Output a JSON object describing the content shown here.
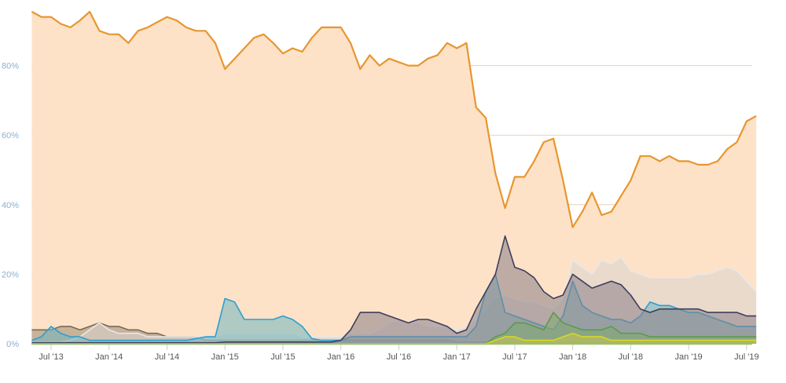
{
  "chart_data": {
    "type": "area",
    "title": "",
    "xlabel": "",
    "ylabel": "",
    "ylim": [
      0,
      100
    ],
    "grid": true,
    "y_ticks": [
      "0%",
      "20%",
      "40%",
      "60%",
      "80%"
    ],
    "y_tick_values": [
      0,
      20,
      40,
      60,
      80
    ],
    "x_ticks": [
      "Jul '13",
      "Jan '14",
      "Jul '14",
      "Jan '15",
      "Jul '15",
      "Jan '16",
      "Jul '16",
      "Jan '17",
      "Jul '17",
      "Jan '18",
      "Jul '18",
      "Jan '19",
      "Jul '19"
    ],
    "x_tick_dates": [
      "2013-07",
      "2014-01",
      "2014-07",
      "2015-01",
      "2015-07",
      "2016-01",
      "2016-07",
      "2017-01",
      "2017-07",
      "2018-01",
      "2018-07",
      "2019-01",
      "2019-07"
    ],
    "x": [
      "2013-05",
      "2013-06",
      "2013-07",
      "2013-08",
      "2013-09",
      "2013-10",
      "2013-11",
      "2013-12",
      "2014-01",
      "2014-02",
      "2014-03",
      "2014-04",
      "2014-05",
      "2014-06",
      "2014-07",
      "2014-08",
      "2014-09",
      "2014-10",
      "2014-11",
      "2014-12",
      "2015-01",
      "2015-02",
      "2015-03",
      "2015-04",
      "2015-05",
      "2015-06",
      "2015-07",
      "2015-08",
      "2015-09",
      "2015-10",
      "2015-11",
      "2015-12",
      "2016-01",
      "2016-02",
      "2016-03",
      "2016-04",
      "2016-05",
      "2016-06",
      "2016-07",
      "2016-08",
      "2016-09",
      "2016-10",
      "2016-11",
      "2016-12",
      "2017-01",
      "2017-02",
      "2017-03",
      "2017-04",
      "2017-05",
      "2017-06",
      "2017-07",
      "2017-08",
      "2017-09",
      "2017-10",
      "2017-11",
      "2017-12",
      "2018-01",
      "2018-02",
      "2018-03",
      "2018-04",
      "2018-05",
      "2018-06",
      "2018-07",
      "2018-08",
      "2018-09",
      "2018-10",
      "2018-11",
      "2018-12",
      "2019-01",
      "2019-02",
      "2019-03",
      "2019-04",
      "2019-05",
      "2019-06",
      "2019-07",
      "2019-08"
    ],
    "series": [
      {
        "color": "#e8962e",
        "fill": "#fde2c8",
        "values": [
          95.5,
          94,
          94,
          92,
          91,
          93,
          95.5,
          90,
          89,
          89,
          86.5,
          90,
          91,
          92.5,
          94,
          93,
          91,
          90,
          90,
          86.5,
          79,
          82,
          85,
          88,
          89,
          86.5,
          83.5,
          85,
          84,
          88,
          91,
          91,
          91,
          86.5,
          79,
          83,
          80,
          82,
          81,
          80,
          80,
          82,
          83,
          86.5,
          85,
          86.5,
          68,
          65,
          49,
          39,
          48,
          48,
          52.5,
          58,
          59,
          47,
          33.5,
          38,
          43.5,
          37,
          38,
          42.5,
          47,
          54,
          54,
          52.5,
          54,
          52.5,
          52.5,
          51.5,
          51.5,
          52.5,
          56,
          58,
          64,
          65.5
        ]
      },
      {
        "color": "#7a6a55",
        "fill": "#9a8a75",
        "values": [
          4,
          4,
          4,
          5,
          5,
          4,
          5,
          6,
          5,
          5,
          4,
          4,
          3,
          3,
          2,
          2,
          2,
          2,
          1,
          1,
          1,
          1,
          1,
          1,
          1,
          1,
          1,
          1,
          1,
          1,
          1,
          1,
          1,
          1,
          1,
          1,
          1,
          1,
          1,
          1,
          1,
          1,
          1,
          1,
          0.5,
          0.5,
          0.5,
          0.5,
          0.5,
          0.5,
          0.5,
          0.5,
          0.5,
          0.5,
          0.5,
          0.5,
          0.5,
          0.5,
          0.5,
          0.5,
          0.5,
          0.5,
          0.5,
          0.5,
          0.5,
          0.5,
          0.5,
          0.5,
          0.5,
          0.5,
          0.5,
          0.5,
          0.5,
          0.5,
          0.5,
          0.5
        ]
      },
      {
        "color": "#e8e8e8",
        "fill": "#d8d4d0",
        "values": [
          0.5,
          0.5,
          0.5,
          0.5,
          1,
          2,
          4,
          6,
          4,
          3,
          3,
          3,
          2,
          2,
          2,
          2,
          2,
          2,
          2,
          2,
          3,
          3,
          3,
          3,
          3,
          3,
          3,
          3,
          2,
          2,
          2,
          2,
          2,
          3,
          3,
          3,
          4,
          6,
          7,
          6,
          6,
          5,
          5,
          5,
          4,
          5,
          7,
          10,
          13,
          14,
          13,
          12,
          12,
          11,
          10,
          13,
          24,
          22,
          20,
          24,
          23,
          25,
          21,
          20,
          19,
          19,
          19,
          19,
          19,
          20,
          20,
          21,
          22,
          21,
          18,
          15
        ]
      },
      {
        "color": "#2b9fd0",
        "fill": "#6fb5c0",
        "values": [
          1,
          2,
          5,
          3,
          2,
          2,
          1,
          1,
          1,
          1,
          1,
          1,
          1,
          1,
          1,
          1,
          1,
          1.5,
          2,
          2,
          13,
          12,
          7,
          7,
          7,
          7,
          8,
          7,
          5,
          1.5,
          1,
          1,
          1,
          2,
          2,
          2,
          2,
          2,
          2,
          2,
          2,
          2,
          2,
          2,
          2,
          2,
          5,
          15,
          20,
          9,
          8,
          7,
          6,
          5,
          4,
          8,
          18,
          11,
          9,
          8,
          7,
          7,
          6,
          8,
          12,
          11,
          11,
          10,
          9,
          9,
          8,
          7,
          6,
          5,
          5,
          5
        ]
      },
      {
        "color": "#3e3d5c",
        "fill": "#8a7f86",
        "values": [
          0.3,
          0.3,
          0.3,
          0.3,
          0.3,
          0.3,
          0.3,
          0.3,
          0.3,
          0.3,
          0.3,
          0.3,
          0.3,
          0.3,
          0.3,
          0.3,
          0.3,
          0.3,
          0.3,
          0.3,
          0.5,
          0.5,
          0.5,
          0.5,
          0.5,
          0.5,
          0.5,
          0.5,
          0.5,
          0.5,
          0.5,
          0.5,
          1,
          4,
          9,
          9,
          9,
          8,
          7,
          6,
          7,
          7,
          6,
          5,
          3,
          4,
          10,
          15,
          20,
          31,
          22,
          21,
          19,
          15,
          13,
          14,
          20,
          18,
          16,
          17,
          18,
          17,
          14,
          10,
          9,
          10,
          10,
          10,
          10,
          10,
          9,
          9,
          9,
          9,
          8,
          8
        ]
      },
      {
        "color": "#5c9a4a",
        "fill": "#7faa70",
        "values": [
          0,
          0,
          0,
          0,
          0,
          0,
          0,
          0,
          0,
          0,
          0,
          0,
          0,
          0,
          0,
          0,
          0,
          0,
          0,
          0,
          0,
          0,
          0,
          0,
          0,
          0,
          0,
          0,
          0,
          0,
          0,
          0,
          0,
          0,
          0,
          0,
          0,
          0,
          0,
          0,
          0,
          0,
          0,
          0,
          0,
          0,
          0,
          0,
          2,
          3,
          6,
          6,
          5,
          4,
          9,
          6,
          5,
          4,
          4,
          4,
          5,
          3,
          3,
          3,
          2,
          2,
          2,
          2,
          2,
          2,
          2,
          2,
          2,
          2,
          2,
          2
        ]
      },
      {
        "color": "#d8d820",
        "fill": "#c8c850",
        "values": [
          0,
          0,
          0,
          0,
          0,
          0,
          0,
          0,
          0,
          0,
          0,
          0,
          0,
          0,
          0,
          0,
          0,
          0,
          0,
          0,
          0,
          0,
          0,
          0,
          0,
          0,
          0,
          0,
          0,
          0,
          0,
          0,
          0,
          0,
          0,
          0,
          0,
          0,
          0,
          0,
          0,
          0,
          0,
          0,
          0,
          0,
          0,
          0,
          1,
          2,
          2,
          1,
          1,
          1,
          1,
          2,
          3,
          2,
          2,
          2,
          1,
          1,
          1,
          1,
          1,
          1,
          1,
          1,
          1,
          1,
          1,
          1,
          1,
          1,
          1,
          1
        ]
      }
    ]
  }
}
